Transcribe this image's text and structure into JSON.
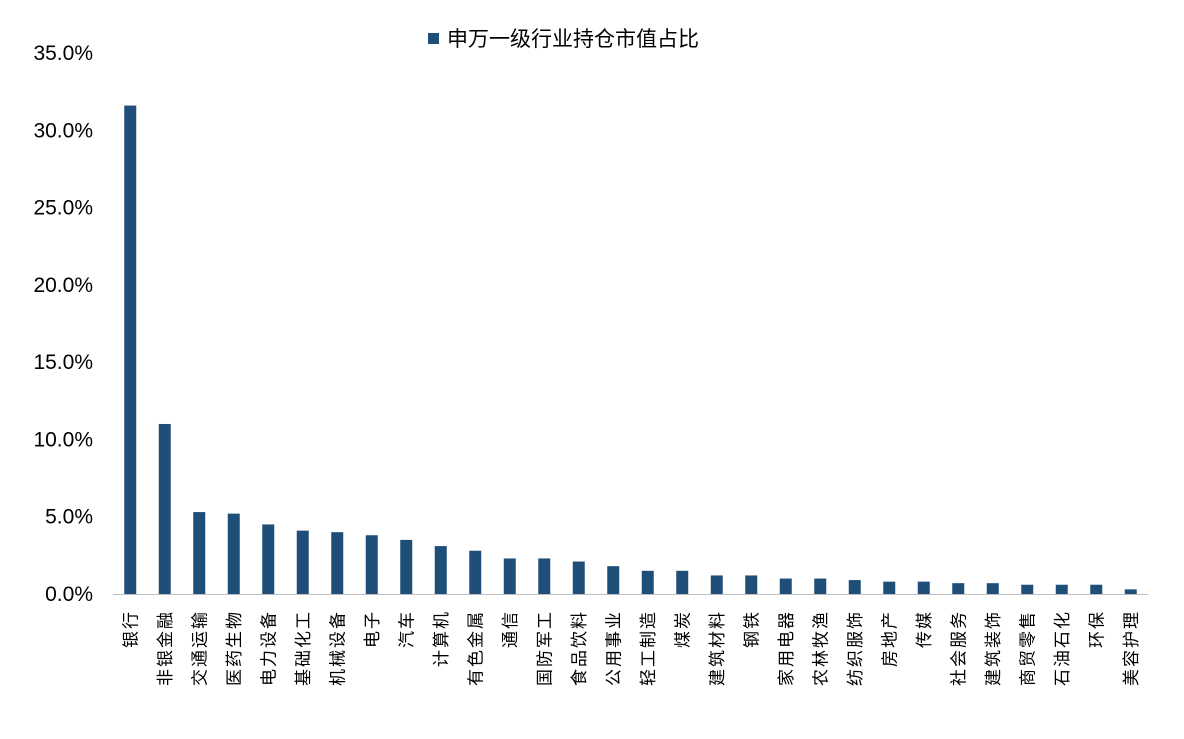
{
  "chart_data": {
    "type": "bar",
    "title": "",
    "xlabel": "",
    "ylabel": "",
    "legend": {
      "position": "top-center"
    },
    "ylim": [
      0,
      35
    ],
    "yticks": [
      "0.0%",
      "5.0%",
      "10.0%",
      "15.0%",
      "20.0%",
      "25.0%",
      "30.0%",
      "35.0%"
    ],
    "grid": false,
    "series": [
      {
        "name": "申万一级行业持仓市值占比",
        "color": "#1f4e79",
        "values": [
          31.6,
          11.0,
          5.3,
          5.2,
          4.5,
          4.1,
          4.0,
          3.8,
          3.5,
          3.1,
          2.8,
          2.3,
          2.3,
          2.1,
          1.8,
          1.5,
          1.5,
          1.2,
          1.2,
          1.0,
          1.0,
          0.9,
          0.8,
          0.8,
          0.7,
          0.7,
          0.6,
          0.6,
          0.6,
          0.3
        ]
      }
    ],
    "categories": [
      "银行",
      "非银金融",
      "交通运输",
      "医药生物",
      "电力设备",
      "基础化工",
      "机械设备",
      "电子",
      "汽车",
      "计算机",
      "有色金属",
      "通信",
      "国防军工",
      "食品饮料",
      "公用事业",
      "轻工制造",
      "煤炭",
      "建筑材料",
      "钢铁",
      "家用电器",
      "农林牧渔",
      "纺织服饰",
      "房地产",
      "传媒",
      "社会服务",
      "建筑装饰",
      "商贸零售",
      "石油石化",
      "环保",
      "美容护理"
    ]
  }
}
